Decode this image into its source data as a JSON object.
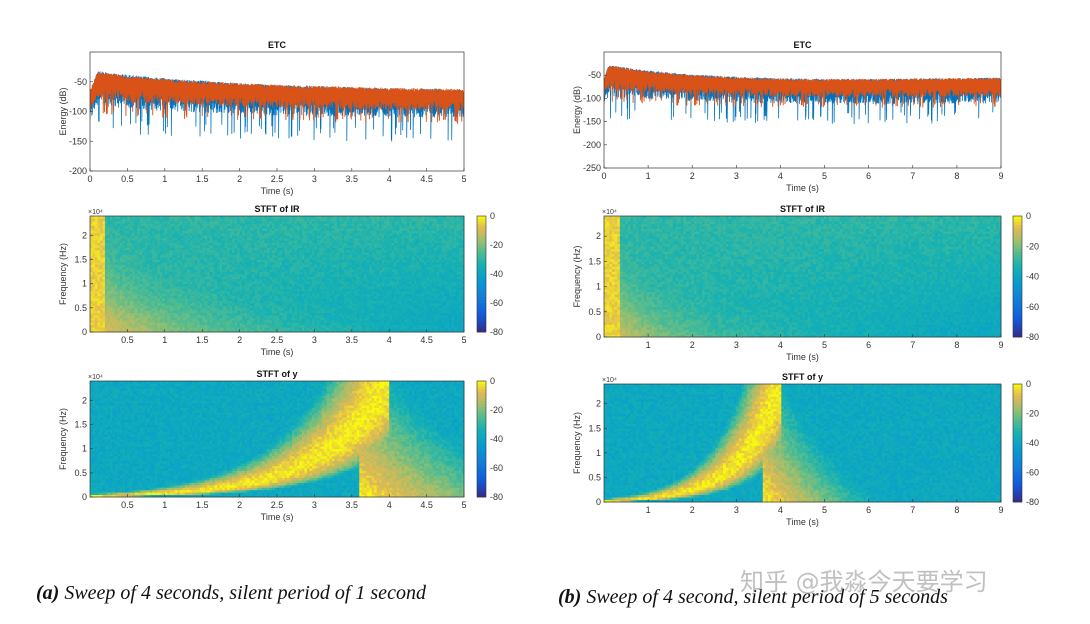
{
  "panels": [
    {
      "id": "a",
      "caption_label": "(a)",
      "caption_text": "Sweep of 4 seconds, silent period of 1 second",
      "charts": [
        {
          "type": "line",
          "title": "ETC",
          "xlabel": "Time (s)",
          "ylabel": "Energy (dB)",
          "xlim": [
            0,
            5
          ],
          "ylim": [
            -200,
            0
          ],
          "xticks": [
            "0",
            "0.5",
            "1",
            "1.5",
            "2",
            "2.5",
            "3",
            "3.5",
            "4",
            "4.5",
            "5"
          ],
          "yticks": [
            "-200",
            "-150",
            "-100",
            "-50"
          ],
          "series": [
            {
              "color": "#0072BD",
              "x": [
                0,
                0.05,
                0.1,
                0.5,
                1,
                1.5,
                2,
                2.5,
                3,
                3.5,
                4,
                4.5,
                5
              ],
              "upper": [
                -65,
                -50,
                -32,
                -38,
                -44,
                -48,
                -52,
                -55,
                -57,
                -59,
                -61,
                -62,
                -63
              ],
              "lower": [
                -140,
                -120,
                -110,
                -115,
                -118,
                -120,
                -122,
                -124,
                -125,
                -125,
                -126,
                -126,
                -127
              ]
            },
            {
              "color": "#D95319",
              "x": [
                0,
                0.05,
                0.1,
                0.5,
                1,
                1.5,
                2,
                2.5,
                3,
                3.5,
                4,
                4.5,
                5
              ],
              "upper": [
                -62,
                -48,
                -32,
                -40,
                -45,
                -49,
                -52,
                -55,
                -57,
                -58,
                -60,
                -61,
                -62
              ],
              "lower": [
                -120,
                -100,
                -95,
                -100,
                -102,
                -104,
                -106,
                -107,
                -108,
                -109,
                -110,
                -110,
                -111
              ]
            }
          ]
        },
        {
          "type": "heatmap",
          "title": "STFT of IR",
          "xlabel": "Time (s)",
          "ylabel": "Frequency (Hz)",
          "exponent": "×10⁴",
          "xlim": [
            0,
            5
          ],
          "ylim": [
            0,
            24000
          ],
          "xticks": [
            "0.5",
            "1",
            "1.5",
            "2",
            "2.5",
            "3",
            "3.5",
            "4",
            "4.5",
            "5"
          ],
          "yticks": [
            "0",
            "0.5",
            "1",
            "1.5",
            "2"
          ],
          "colorbar": {
            "range": [
              -80,
              0
            ],
            "ticks": [
              "0",
              "-20",
              "-40",
              "-60",
              "-80"
            ],
            "colormap": "parula"
          },
          "description": "decaying energy from t=0 concentrated at low frequencies; background around -50 dB"
        },
        {
          "type": "heatmap",
          "title": "STFT of y",
          "xlabel": "Time (s)",
          "ylabel": "Frequency (Hz)",
          "exponent": "×10⁴",
          "xlim": [
            0,
            5
          ],
          "ylim": [
            0,
            24000
          ],
          "xticks": [
            "0.5",
            "1",
            "1.5",
            "2",
            "2.5",
            "3",
            "3.5",
            "4",
            "4.5",
            "5"
          ],
          "yticks": [
            "0",
            "0.5",
            "1",
            "1.5",
            "2"
          ],
          "colorbar": {
            "range": [
              -80,
              0
            ],
            "ticks": [
              "0",
              "-20",
              "-40",
              "-60",
              "-80"
            ],
            "colormap": "parula"
          },
          "sweep": {
            "start_time": 0,
            "end_time": 4,
            "f_start": 20,
            "f_end": 24000
          }
        }
      ]
    },
    {
      "id": "b",
      "caption_label": "(b)",
      "caption_text": "Sweep of 4 second, silent period of 5 seconds",
      "charts": [
        {
          "type": "line",
          "title": "ETC",
          "xlabel": "Time (s)",
          "ylabel": "Energy (dB)",
          "xlim": [
            0,
            9
          ],
          "ylim": [
            -250,
            0
          ],
          "xticks": [
            "0",
            "1",
            "2",
            "3",
            "4",
            "5",
            "6",
            "7",
            "8",
            "9"
          ],
          "yticks": [
            "-250",
            "-200",
            "-150",
            "-100",
            "-50"
          ],
          "series": [
            {
              "color": "#0072BD",
              "x": [
                0,
                0.05,
                0.1,
                1,
                2,
                3,
                4,
                5,
                6,
                7,
                8,
                9
              ],
              "upper": [
                -60,
                -45,
                -28,
                -40,
                -48,
                -53,
                -56,
                -58,
                -58,
                -57,
                -56,
                -55
              ],
              "lower": [
                -145,
                -130,
                -120,
                -123,
                -126,
                -128,
                -130,
                -131,
                -131,
                -130,
                -130,
                -129
              ]
            },
            {
              "color": "#D95319",
              "x": [
                0,
                0.05,
                0.1,
                1,
                2,
                3,
                4,
                5,
                6,
                7,
                8,
                9
              ],
              "upper": [
                -58,
                -44,
                -28,
                -41,
                -49,
                -54,
                -57,
                -58,
                -58,
                -57,
                -56,
                -55
              ],
              "lower": [
                -125,
                -105,
                -100,
                -104,
                -106,
                -108,
                -110,
                -110,
                -110,
                -110,
                -110,
                -110
              ]
            }
          ]
        },
        {
          "type": "heatmap",
          "title": "STFT of IR",
          "xlabel": "Time (s)",
          "ylabel": "Frequency (Hz)",
          "exponent": "×10⁴",
          "xlim": [
            0,
            9
          ],
          "ylim": [
            0,
            24000
          ],
          "xticks": [
            "1",
            "2",
            "3",
            "4",
            "5",
            "6",
            "7",
            "8",
            "9"
          ],
          "yticks": [
            "0",
            "0.5",
            "1",
            "1.5",
            "2"
          ],
          "colorbar": {
            "range": [
              -80,
              0
            ],
            "ticks": [
              "0",
              "-20",
              "-40",
              "-60",
              "-80"
            ],
            "colormap": "parula"
          },
          "description": "decaying energy from t=0 concentrated at low frequencies; background around -50 dB"
        },
        {
          "type": "heatmap",
          "title": "STFT of y",
          "xlabel": "Time (s)",
          "ylabel": "Frequency (Hz)",
          "exponent": "×10⁴",
          "xlim": [
            0,
            9
          ],
          "ylim": [
            0,
            24000
          ],
          "xticks": [
            "1",
            "2",
            "3",
            "4",
            "5",
            "6",
            "7",
            "8",
            "9"
          ],
          "yticks": [
            "0",
            "0.5",
            "1",
            "1.5",
            "2"
          ],
          "colorbar": {
            "range": [
              -80,
              0
            ],
            "ticks": [
              "0",
              "-20",
              "-40",
              "-60",
              "-80"
            ],
            "colormap": "parula"
          },
          "sweep": {
            "start_time": 0,
            "end_time": 4,
            "f_start": 20,
            "f_end": 24000
          }
        }
      ]
    }
  ],
  "chart_data": [
    {
      "panel": "a",
      "type": "line",
      "title": "ETC",
      "xlabel": "Time (s)",
      "ylabel": "Energy (dB)",
      "xlim": [
        0,
        5
      ],
      "ylim": [
        -200,
        0
      ]
    },
    {
      "panel": "a",
      "type": "heatmap",
      "title": "STFT of IR",
      "xlabel": "Time (s)",
      "ylabel": "Frequency (Hz)",
      "xlim": [
        0,
        5
      ],
      "ylim": [
        0,
        24000
      ],
      "colorbar_range": [
        -80,
        0
      ]
    },
    {
      "panel": "a",
      "type": "heatmap",
      "title": "STFT of y",
      "xlabel": "Time (s)",
      "ylabel": "Frequency (Hz)",
      "xlim": [
        0,
        5
      ],
      "ylim": [
        0,
        24000
      ],
      "colorbar_range": [
        -80,
        0
      ]
    },
    {
      "panel": "b",
      "type": "line",
      "title": "ETC",
      "xlabel": "Time (s)",
      "ylabel": "Energy (dB)",
      "xlim": [
        0,
        9
      ],
      "ylim": [
        -250,
        0
      ]
    },
    {
      "panel": "b",
      "type": "heatmap",
      "title": "STFT of IR",
      "xlabel": "Time (s)",
      "ylabel": "Frequency (Hz)",
      "xlim": [
        0,
        9
      ],
      "ylim": [
        0,
        24000
      ],
      "colorbar_range": [
        -80,
        0
      ]
    },
    {
      "panel": "b",
      "type": "heatmap",
      "title": "STFT of y",
      "xlabel": "Time (s)",
      "ylabel": "Frequency (Hz)",
      "xlim": [
        0,
        9
      ],
      "ylim": [
        0,
        24000
      ],
      "colorbar_range": [
        -80,
        0
      ]
    }
  ],
  "watermark": "知乎 @我淼今天要学习"
}
